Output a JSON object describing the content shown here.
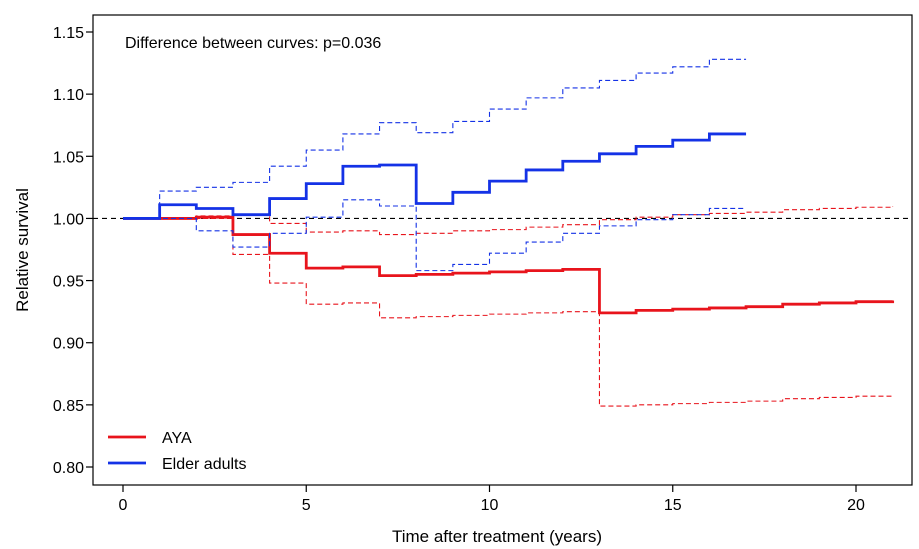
{
  "chart_data": {
    "type": "line",
    "step": true,
    "xlabel": "Time after treatment (years)",
    "ylabel": "Relative survival",
    "xlim": [
      0,
      21
    ],
    "ylim": [
      0.8,
      1.15
    ],
    "xticks": [
      0,
      5,
      10,
      15,
      20
    ],
    "yticks": [
      0.8,
      0.85,
      0.9,
      0.95,
      1.0,
      1.05,
      1.1,
      1.15
    ],
    "xtick_labels": [
      "0",
      "5",
      "10",
      "15",
      "20"
    ],
    "ytick_labels": [
      "0.80",
      "0.85",
      "0.90",
      "0.95",
      "1.00",
      "1.05",
      "1.10",
      "1.15"
    ],
    "reference_line": 1.0,
    "annotation": "Difference between curves: p=0.036",
    "grid": false,
    "legend_position": "bottom-left",
    "series": [
      {
        "name": "AYA",
        "color": "#e8141c",
        "x": [
          0,
          1,
          2,
          3,
          4,
          5,
          6,
          7,
          8,
          9,
          10,
          11,
          12,
          13,
          14,
          15,
          16,
          17,
          18,
          19,
          20,
          21
        ],
        "values": [
          1.0,
          1.0,
          1.001,
          0.987,
          0.972,
          0.96,
          0.961,
          0.954,
          0.955,
          0.956,
          0.957,
          0.958,
          0.959,
          0.924,
          0.926,
          0.927,
          0.928,
          0.929,
          0.931,
          0.932,
          0.933,
          0.934
        ],
        "ci_lower": [
          1.0,
          1.0,
          1.0,
          0.971,
          0.948,
          0.931,
          0.932,
          0.92,
          0.921,
          0.922,
          0.923,
          0.924,
          0.925,
          0.849,
          0.85,
          0.851,
          0.852,
          0.853,
          0.855,
          0.856,
          0.857,
          0.858
        ],
        "ci_upper": [
          1.0,
          1.0,
          1.002,
          1.003,
          0.996,
          0.989,
          0.99,
          0.987,
          0.988,
          0.99,
          0.991,
          0.993,
          0.995,
          0.999,
          1.001,
          1.003,
          1.004,
          1.005,
          1.007,
          1.008,
          1.009,
          1.01
        ]
      },
      {
        "name": "Elder adults",
        "color": "#1432e6",
        "x": [
          0,
          1,
          2,
          3,
          4,
          5,
          6,
          7,
          8,
          9,
          10,
          11,
          12,
          13,
          14,
          15,
          16,
          17
        ],
        "values": [
          1.0,
          1.011,
          1.008,
          1.003,
          1.016,
          1.028,
          1.042,
          1.043,
          1.012,
          1.021,
          1.03,
          1.039,
          1.046,
          1.052,
          1.058,
          1.063,
          1.068,
          1.068
        ],
        "ci_lower": [
          1.0,
          1.0,
          0.99,
          0.977,
          0.988,
          1.001,
          1.015,
          1.01,
          0.958,
          0.963,
          0.972,
          0.981,
          0.988,
          0.994,
          0.999,
          1.003,
          1.008,
          1.008
        ],
        "ci_upper": [
          1.0,
          1.022,
          1.025,
          1.029,
          1.042,
          1.055,
          1.068,
          1.077,
          1.069,
          1.078,
          1.088,
          1.097,
          1.105,
          1.111,
          1.117,
          1.122,
          1.128,
          1.128
        ]
      }
    ]
  }
}
